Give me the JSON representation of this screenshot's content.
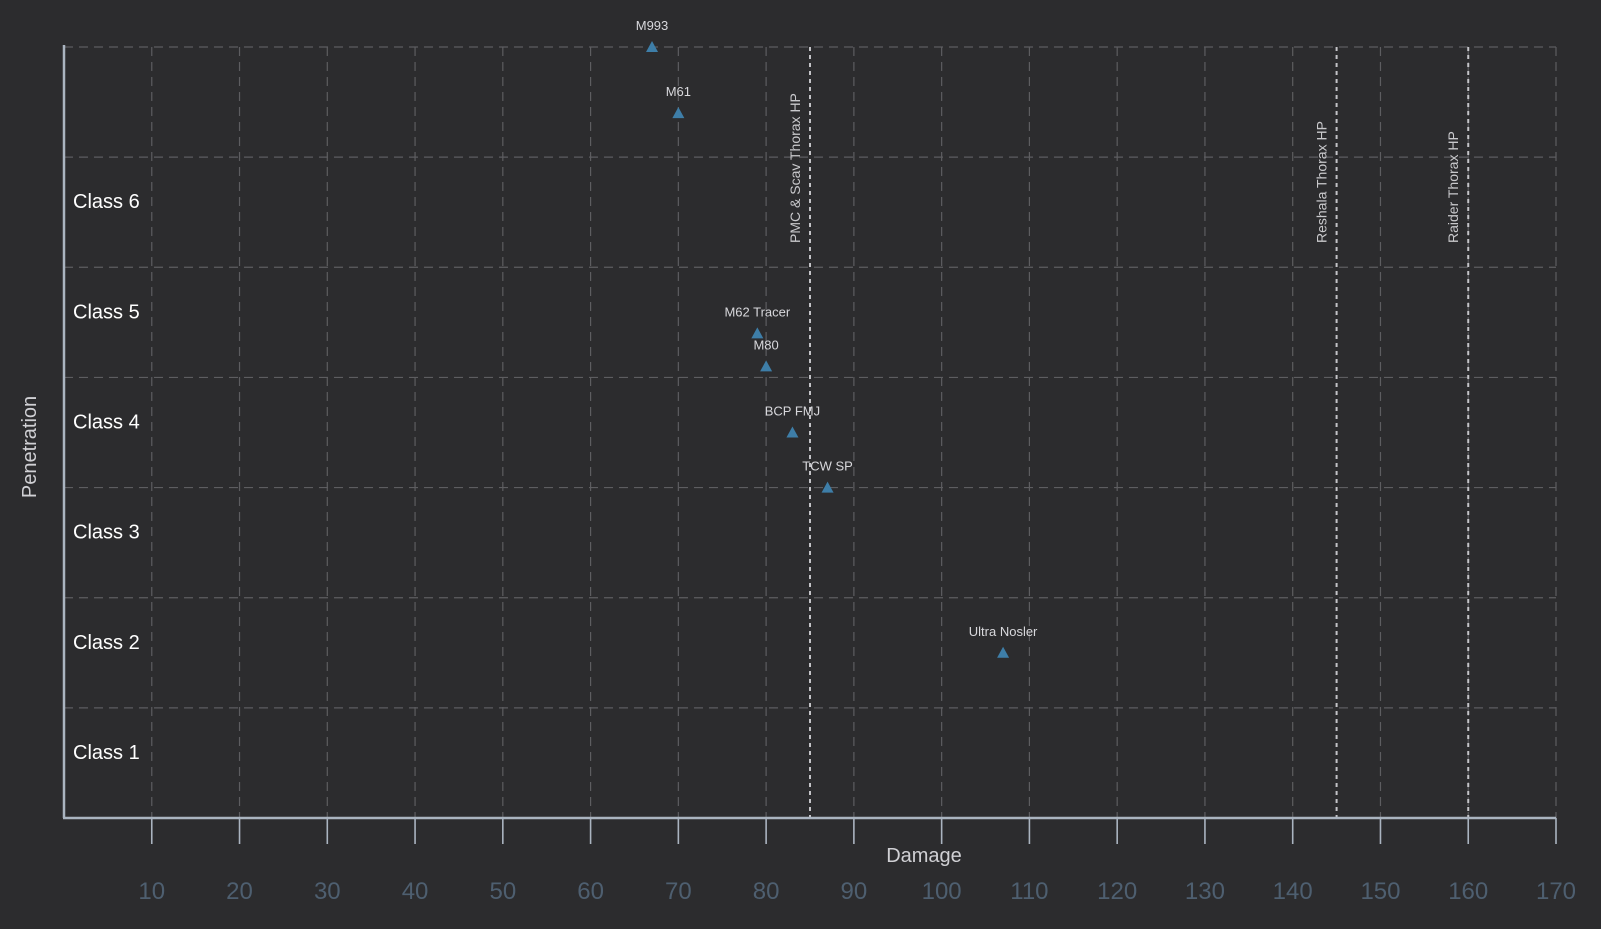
{
  "chart_data": {
    "type": "scatter",
    "xlabel": "Damage",
    "ylabel": "Penetration",
    "xlim": [
      0,
      170
    ],
    "x_ticks": [
      10,
      20,
      30,
      40,
      50,
      60,
      70,
      80,
      90,
      100,
      110,
      120,
      130,
      140,
      150,
      160,
      170
    ],
    "ylim": [
      0,
      7
    ],
    "y_class_labels": [
      {
        "label": "Class  1",
        "y": 1
      },
      {
        "label": "Class  2",
        "y": 2
      },
      {
        "label": "Class  3",
        "y": 3
      },
      {
        "label": "Class  4",
        "y": 4
      },
      {
        "label": "Class  5",
        "y": 5
      },
      {
        "label": "Class  6",
        "y": 6
      }
    ],
    "grid": true,
    "marker_color": "#3e7ea8",
    "points": [
      {
        "label": "M993",
        "x": 67,
        "y": 7.0
      },
      {
        "label": "M61",
        "x": 70,
        "y": 6.4
      },
      {
        "label": "M62  Tracer",
        "x": 79,
        "y": 4.4
      },
      {
        "label": "M80",
        "x": 80,
        "y": 4.1
      },
      {
        "label": "BCP  FMJ",
        "x": 83,
        "y": 3.5
      },
      {
        "label": "TCW  SP",
        "x": 87,
        "y": 3.0
      },
      {
        "label": "Ultra  Nosler",
        "x": 107,
        "y": 1.5
      }
    ],
    "reference_lines": [
      {
        "label": "PMC  &  Scav  Thorax  HP",
        "x": 85
      },
      {
        "label": "Reshala  Thorax  HP",
        "x": 145
      },
      {
        "label": "Raider  Thorax  HP",
        "x": 160
      }
    ]
  }
}
